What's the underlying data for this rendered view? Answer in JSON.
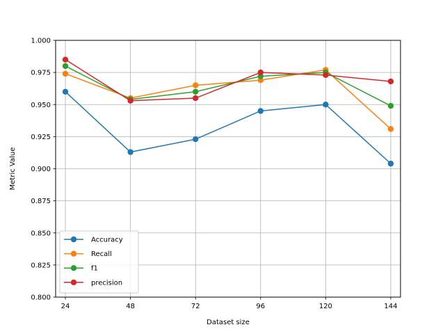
{
  "chart_data": {
    "type": "line",
    "title": "",
    "xlabel": "Dataset size",
    "ylabel": "Metric Value",
    "x": [
      24,
      48,
      72,
      96,
      120,
      144
    ],
    "xticks": [
      "24",
      "48",
      "72",
      "96",
      "120",
      "144"
    ],
    "ylim": [
      0.8,
      1.0
    ],
    "yticks": [
      "0.800",
      "0.825",
      "0.850",
      "0.875",
      "0.900",
      "0.925",
      "0.950",
      "0.975",
      "1.000"
    ],
    "grid": true,
    "legend_position": "lower-left",
    "series": [
      {
        "name": "Accuracy",
        "color": "#1f77b4",
        "values": [
          0.96,
          0.913,
          0.923,
          0.945,
          0.95,
          0.904
        ]
      },
      {
        "name": "Recall",
        "color": "#ff7f0e",
        "values": [
          0.974,
          0.955,
          0.965,
          0.969,
          0.977,
          0.931
        ]
      },
      {
        "name": "f1",
        "color": "#2ca02c",
        "values": [
          0.98,
          0.954,
          0.96,
          0.972,
          0.975,
          0.949
        ]
      },
      {
        "name": "precision",
        "color": "#d62728",
        "values": [
          0.985,
          0.953,
          0.955,
          0.975,
          0.973,
          0.968
        ]
      }
    ]
  }
}
